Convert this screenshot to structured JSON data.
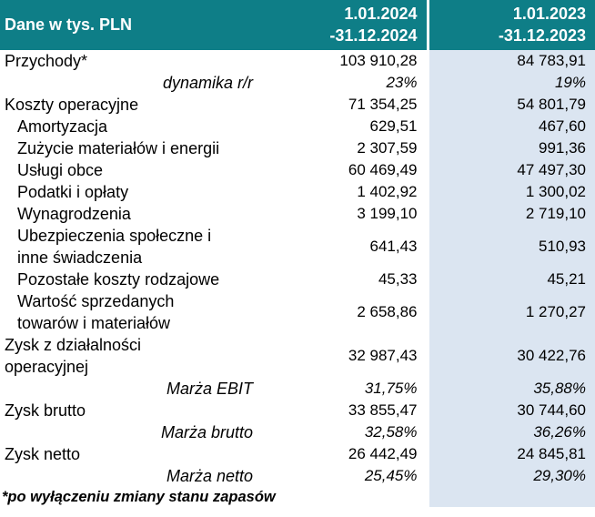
{
  "colors": {
    "header_bg": "#0e7e87",
    "header_text": "#ffffff",
    "col_2023_bg": "#dbe5f1",
    "body_text": "#000000"
  },
  "header": {
    "unit_label": "Dane w tys. PLN",
    "period_2024": "1.01.2024\n-31.12.2024",
    "period_2023": "1.01.2023\n-31.12.2023"
  },
  "footnote": "*po wyłączeniu zmiany stanu zapasów",
  "chart_data": {
    "type": "table",
    "title": "Dane w tys. PLN",
    "columns": [
      "Dane w tys. PLN",
      "1.01.2024 -31.12.2024",
      "1.01.2023 -31.12.2023"
    ],
    "rows": [
      {
        "label": "Przychody*",
        "v2024": "103 910,28",
        "v2023": "84 783,91",
        "style": "main"
      },
      {
        "label": "dynamika r/r",
        "v2024": "23%",
        "v2023": "19%",
        "style": "ratio"
      },
      {
        "label": "Koszty operacyjne",
        "v2024": "71 354,25",
        "v2023": "54 801,79",
        "style": "main"
      },
      {
        "label": "Amortyzacja",
        "v2024": "629,51",
        "v2023": "467,60",
        "style": "sub"
      },
      {
        "label": "Zużycie materiałów i energii",
        "v2024": "2 307,59",
        "v2023": "991,36",
        "style": "sub"
      },
      {
        "label": "Usługi obce",
        "v2024": "60 469,49",
        "v2023": "47 497,30",
        "style": "sub"
      },
      {
        "label": "Podatki i opłaty",
        "v2024": "1 402,92",
        "v2023": "1 300,02",
        "style": "sub"
      },
      {
        "label": "Wynagrodzenia",
        "v2024": "3 199,10",
        "v2023": "2 719,10",
        "style": "sub"
      },
      {
        "label": "Ubezpieczenia społeczne i\ninne świadczenia",
        "v2024": "641,43",
        "v2023": "510,93",
        "style": "sub"
      },
      {
        "label": "Pozostałe koszty rodzajowe",
        "v2024": "45,33",
        "v2023": "45,21",
        "style": "sub"
      },
      {
        "label": "Wartość sprzedanych\ntowarów i materiałów",
        "v2024": "2 658,86",
        "v2023": "1 270,27",
        "style": "sub"
      },
      {
        "label": "Zysk z działalności\noperacyjnej",
        "v2024": "32 987,43",
        "v2023": "30 422,76",
        "style": "main"
      },
      {
        "label": "Marża EBIT",
        "v2024": "31,75%",
        "v2023": "35,88%",
        "style": "ratio"
      },
      {
        "label": "Zysk brutto",
        "v2024": "33 855,47",
        "v2023": "30 744,60",
        "style": "main"
      },
      {
        "label": "Marża brutto",
        "v2024": "32,58%",
        "v2023": "36,26%",
        "style": "ratio"
      },
      {
        "label": "Zysk netto",
        "v2024": "26 442,49",
        "v2023": "24 845,81",
        "style": "main"
      },
      {
        "label": "Marża netto",
        "v2024": "25,45%",
        "v2023": "29,30%",
        "style": "ratio"
      }
    ],
    "footnote": "*po wyłączeniu zmiany stanu zapasów"
  }
}
